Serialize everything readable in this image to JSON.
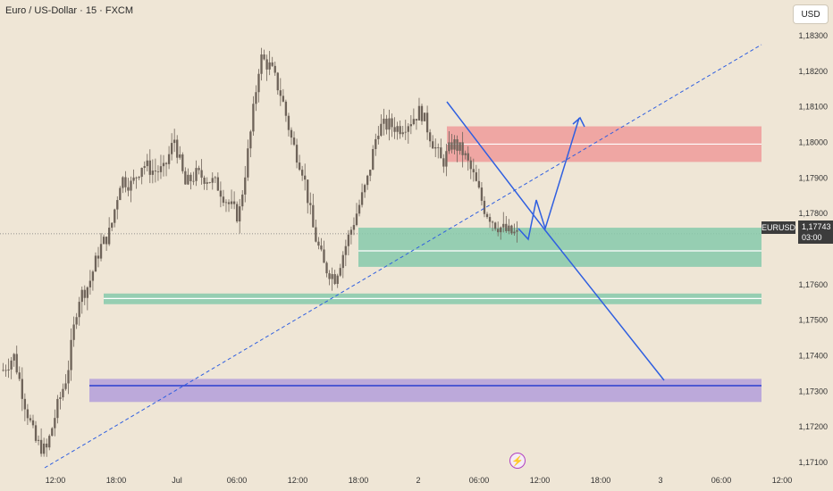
{
  "header": {
    "title": "Euro / US-Dollar · 15 · FXCM"
  },
  "currency_button": {
    "label": "USD"
  },
  "price_tag": {
    "symbol": "EURUSD",
    "price": "1,17743",
    "countdown": "03:00"
  },
  "event_icon": {
    "name": "lightning-icon",
    "glyph": "⚡"
  },
  "colors": {
    "background": "#efe6d6",
    "candle": "#6e6359",
    "supply_zone": "#ef9a9a",
    "demand_zone": "#86c9ab",
    "purple_zone": "#b39ddb",
    "projection": "#2f5fe0"
  },
  "chart_data": {
    "type": "candlestick",
    "x_ticks": [
      "12:00",
      "18:00",
      "Jul",
      "06:00",
      "12:00",
      "18:00",
      "2",
      "06:00",
      "12:00",
      "18:00",
      "3",
      "06:00",
      "12:00"
    ],
    "y_ticks": [
      "1,18300",
      "1,18200",
      "1,18100",
      "1,18000",
      "1,17900",
      "1,17800",
      "1,17600",
      "1,17500",
      "1,17400",
      "1,17300",
      "1,17200",
      "1,17100"
    ],
    "y_range": [
      1.1709,
      1.1833
    ],
    "close_series": [
      1.1736,
      1.174,
      1.1727,
      1.1716,
      1.1713,
      1.1725,
      1.1735,
      1.1756,
      1.176,
      1.177,
      1.1775,
      1.179,
      1.1788,
      1.1794,
      1.1792,
      1.1792,
      1.1801,
      1.1788,
      1.1791,
      1.179,
      1.1788,
      1.1783,
      1.1779,
      1.18,
      1.1824,
      1.1821,
      1.1813,
      1.18,
      1.1792,
      1.1775,
      1.1765,
      1.1762,
      1.1771,
      1.178,
      1.1789,
      1.1804,
      1.1805,
      1.1804,
      1.1806,
      1.1809,
      1.1801,
      1.1794,
      1.18,
      1.1797,
      1.179,
      1.1781,
      1.1777,
      1.1775,
      1.1774
    ],
    "zones": [
      {
        "label": "supply",
        "from": 1.17945,
        "to": 1.18045
      },
      {
        "label": "demand",
        "from": 1.1765,
        "to": 1.1776
      },
      {
        "label": "support",
        "from": 1.17545,
        "to": 1.17575
      },
      {
        "label": "purple",
        "from": 1.1727,
        "to": 1.17335
      }
    ],
    "horizontal_lines": [
      1.17995,
      1.17695,
      1.17561,
      1.17316
    ],
    "current_price": 1.17743
  }
}
